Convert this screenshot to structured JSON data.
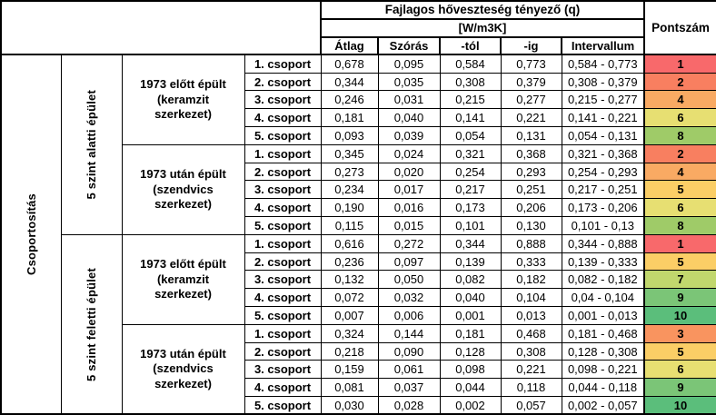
{
  "table": {
    "header": {
      "title": "Fajlagos hőveszteség tényező (q)",
      "unit": "[W/m3K]",
      "columns": [
        "Átlag",
        "Szórás",
        "-tól",
        "-ig",
        "Intervallum"
      ],
      "score": "Pontszám"
    },
    "row_label_col": "Csoportosítás",
    "score_colors": {
      "1": "#F8696B",
      "2": "#F87F60",
      "3": "#F9945F",
      "4": "#F9AA63",
      "5": "#FBCE66",
      "6": "#E7DF72",
      "7": "#C1D76D",
      "8": "#9FCB68",
      "9": "#7BC577",
      "10": "#5BBE7B"
    },
    "sections": [
      {
        "label": "5 szint alatti épület",
        "subsections": [
          {
            "label": "1973 előtt épült (keramzit szerkezet)",
            "rows": [
              {
                "group": "1. csoport",
                "atlag": "0,678",
                "szoras": "0,095",
                "tol": "0,584",
                "ig": "0,773",
                "intervallum": "0,584 - 0,773",
                "pontszam": "1",
                "color": "#F8696B"
              },
              {
                "group": "2. csoport",
                "atlag": "0,344",
                "szoras": "0,035",
                "tol": "0,308",
                "ig": "0,379",
                "intervallum": "0,308 - 0,379",
                "pontszam": "2",
                "color": "#F87F60"
              },
              {
                "group": "3. csoport",
                "atlag": "0,246",
                "szoras": "0,031",
                "tol": "0,215",
                "ig": "0,277",
                "intervallum": "0,215 - 0,277",
                "pontszam": "4",
                "color": "#F9AA63"
              },
              {
                "group": "4. csoport",
                "atlag": "0,181",
                "szoras": "0,040",
                "tol": "0,141",
                "ig": "0,221",
                "intervallum": "0,141 - 0,221",
                "pontszam": "6",
                "color": "#E7DF72"
              },
              {
                "group": "5. csoport",
                "atlag": "0,093",
                "szoras": "0,039",
                "tol": "0,054",
                "ig": "0,131",
                "intervallum": "0,054 - 0,131",
                "pontszam": "8",
                "color": "#9FCB68"
              }
            ]
          },
          {
            "label": "1973 után épült (szendvics szerkezet)",
            "rows": [
              {
                "group": "1. csoport",
                "atlag": "0,345",
                "szoras": "0,024",
                "tol": "0,321",
                "ig": "0,368",
                "intervallum": "0,321 - 0,368",
                "pontszam": "2",
                "color": "#F87F60"
              },
              {
                "group": "2. csoport",
                "atlag": "0,273",
                "szoras": "0,020",
                "tol": "0,254",
                "ig": "0,293",
                "intervallum": "0,254 - 0,293",
                "pontszam": "4",
                "color": "#F9AA63"
              },
              {
                "group": "3. csoport",
                "atlag": "0,234",
                "szoras": "0,017",
                "tol": "0,217",
                "ig": "0,251",
                "intervallum": "0,217 - 0,251",
                "pontszam": "5",
                "color": "#FBCE66"
              },
              {
                "group": "4. csoport",
                "atlag": "0,190",
                "szoras": "0,016",
                "tol": "0,173",
                "ig": "0,206",
                "intervallum": "0,173 - 0,206",
                "pontszam": "6",
                "color": "#E7DF72"
              },
              {
                "group": "5. csoport",
                "atlag": "0,115",
                "szoras": "0,015",
                "tol": "0,101",
                "ig": "0,130",
                "intervallum": "0,101 - 0,13",
                "pontszam": "8",
                "color": "#9FCB68"
              }
            ]
          }
        ]
      },
      {
        "label": "5 szint feletti épület",
        "subsections": [
          {
            "label": "1973 előtt épült (keramzit szerkezet)",
            "rows": [
              {
                "group": "1. csoport",
                "atlag": "0,616",
                "szoras": "0,272",
                "tol": "0,344",
                "ig": "0,888",
                "intervallum": "0,344 - 0,888",
                "pontszam": "1",
                "color": "#F8696B"
              },
              {
                "group": "2. csoport",
                "atlag": "0,236",
                "szoras": "0,097",
                "tol": "0,139",
                "ig": "0,333",
                "intervallum": "0,139 - 0,333",
                "pontszam": "5",
                "color": "#FBCE66"
              },
              {
                "group": "3. csoport",
                "atlag": "0,132",
                "szoras": "0,050",
                "tol": "0,082",
                "ig": "0,182",
                "intervallum": "0,082 - 0,182",
                "pontszam": "7",
                "color": "#C1D76D"
              },
              {
                "group": "4. csoport",
                "atlag": "0,072",
                "szoras": "0,032",
                "tol": "0,040",
                "ig": "0,104",
                "intervallum": "0,04 - 0,104",
                "pontszam": "9",
                "color": "#7BC577"
              },
              {
                "group": "5. csoport",
                "atlag": "0,007",
                "szoras": "0,006",
                "tol": "0,001",
                "ig": "0,013",
                "intervallum": "0,001 - 0,013",
                "pontszam": "10",
                "color": "#5BBE7B"
              }
            ]
          },
          {
            "label": "1973 után épült (szendvics szerkezet)",
            "rows": [
              {
                "group": "1. csoport",
                "atlag": "0,324",
                "szoras": "0,144",
                "tol": "0,181",
                "ig": "0,468",
                "intervallum": "0,181 - 0,468",
                "pontszam": "3",
                "color": "#F9945F"
              },
              {
                "group": "2. csoport",
                "atlag": "0,218",
                "szoras": "0,090",
                "tol": "0,128",
                "ig": "0,308",
                "intervallum": "0,128 - 0,308",
                "pontszam": "5",
                "color": "#FBCE66"
              },
              {
                "group": "3. csoport",
                "atlag": "0,159",
                "szoras": "0,061",
                "tol": "0,098",
                "ig": "0,221",
                "intervallum": "0,098 - 0,221",
                "pontszam": "6",
                "color": "#E7DF72"
              },
              {
                "group": "4. csoport",
                "atlag": "0,081",
                "szoras": "0,037",
                "tol": "0,044",
                "ig": "0,118",
                "intervallum": "0,044 - 0,118",
                "pontszam": "9",
                "color": "#7BC577"
              },
              {
                "group": "5. csoport",
                "atlag": "0,030",
                "szoras": "0,028",
                "tol": "0,002",
                "ig": "0,057",
                "intervallum": "0,002 - 0,057",
                "pontszam": "10",
                "color": "#5BBE7B"
              }
            ]
          }
        ]
      }
    ]
  }
}
